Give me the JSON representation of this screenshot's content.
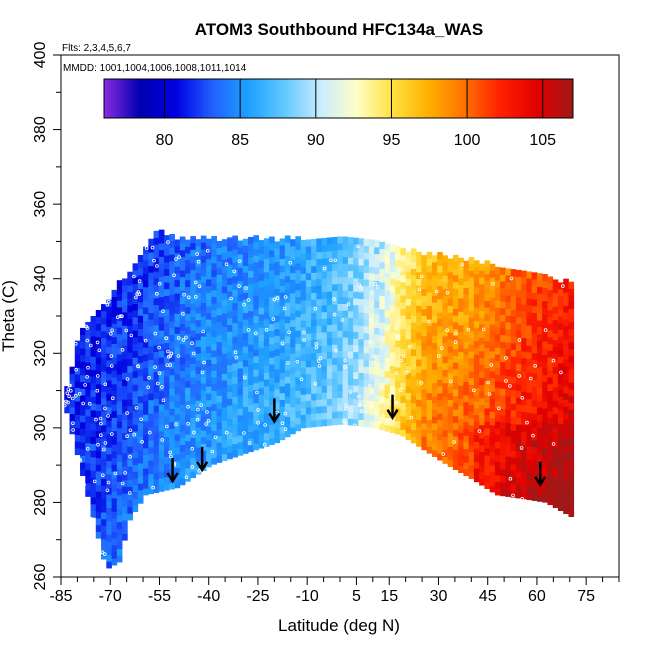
{
  "chart_data": {
    "type": "heatmap",
    "title": "ATOM3 Southbound HFC134a_WAS",
    "annotations": [
      "Flts: 2,3,4,5,6,7",
      "MMDD: 1001,1004,1006,1008,1011,1014"
    ],
    "xlabel": "Latitude (deg N)",
    "ylabel": "Theta (C)",
    "xlim": [
      -85,
      85
    ],
    "ylim": [
      260,
      400
    ],
    "x_tick_labels": [
      "-85",
      "-70",
      "-55",
      "-40",
      "-25",
      "-10",
      "5",
      "15",
      "30",
      "45",
      "60",
      "75"
    ],
    "x_tick_values": [
      -85,
      -70,
      -55,
      -40,
      -25,
      -10,
      5,
      15,
      30,
      45,
      60,
      75
    ],
    "y_tick_labels": [
      "260",
      "280",
      "300",
      "320",
      "340",
      "360",
      "380",
      "400"
    ],
    "y_tick_values": [
      260,
      280,
      300,
      320,
      340,
      360,
      380,
      400
    ],
    "colorbar": {
      "range": [
        76,
        107
      ],
      "tick_labels": [
        "80",
        "85",
        "90",
        "95",
        "100",
        "105"
      ],
      "tick_values": [
        80,
        85,
        90,
        95,
        100,
        105
      ],
      "colors": [
        "#8a2be2",
        "#0000b0",
        "#0000e0",
        "#2060ff",
        "#1ea0ff",
        "#60c8ff",
        "#c8ecff",
        "#ffffc8",
        "#ffe040",
        "#ffb000",
        "#ff7000",
        "#ff2000",
        "#e00000",
        "#a01818"
      ]
    },
    "region": {
      "boundary_bottom": [
        [
          -72,
          262
        ],
        [
          -68,
          264
        ],
        [
          -65,
          275
        ],
        [
          -60,
          282
        ],
        [
          -50,
          284
        ],
        [
          -45,
          287
        ],
        [
          -40,
          290
        ],
        [
          -30,
          293
        ],
        [
          -20,
          296
        ],
        [
          -12,
          300
        ],
        [
          0,
          301
        ],
        [
          10,
          300
        ],
        [
          18,
          298
        ],
        [
          25,
          294
        ],
        [
          32,
          290
        ],
        [
          40,
          286
        ],
        [
          47,
          282
        ],
        [
          55,
          281
        ],
        [
          62,
          280
        ],
        [
          70,
          276
        ]
      ],
      "boundary_top": [
        [
          -84,
          310
        ],
        [
          -80,
          325
        ],
        [
          -75,
          330
        ],
        [
          -68,
          338
        ],
        [
          -62,
          345
        ],
        [
          -56,
          352
        ],
        [
          -50,
          350
        ],
        [
          -30,
          350
        ],
        [
          0,
          350
        ],
        [
          15,
          348
        ],
        [
          25,
          346
        ],
        [
          40,
          344
        ],
        [
          50,
          342
        ],
        [
          60,
          340
        ],
        [
          70,
          338
        ]
      ],
      "values_by_latitude": [
        [
          -84,
          82
        ],
        [
          -75,
          82
        ],
        [
          -65,
          83
        ],
        [
          -55,
          84
        ],
        [
          -45,
          85
        ],
        [
          -30,
          86
        ],
        [
          -15,
          87
        ],
        [
          -5,
          88
        ],
        [
          5,
          90
        ],
        [
          12,
          93
        ],
        [
          18,
          96
        ],
        [
          25,
          99
        ],
        [
          35,
          100
        ],
        [
          45,
          101
        ],
        [
          55,
          103
        ],
        [
          65,
          104
        ],
        [
          70,
          105
        ]
      ]
    },
    "tropopause_markers": [
      [
        -51,
        286
      ],
      [
        -42,
        289
      ],
      [
        -20,
        302
      ],
      [
        16,
        303
      ],
      [
        61,
        285
      ]
    ]
  }
}
